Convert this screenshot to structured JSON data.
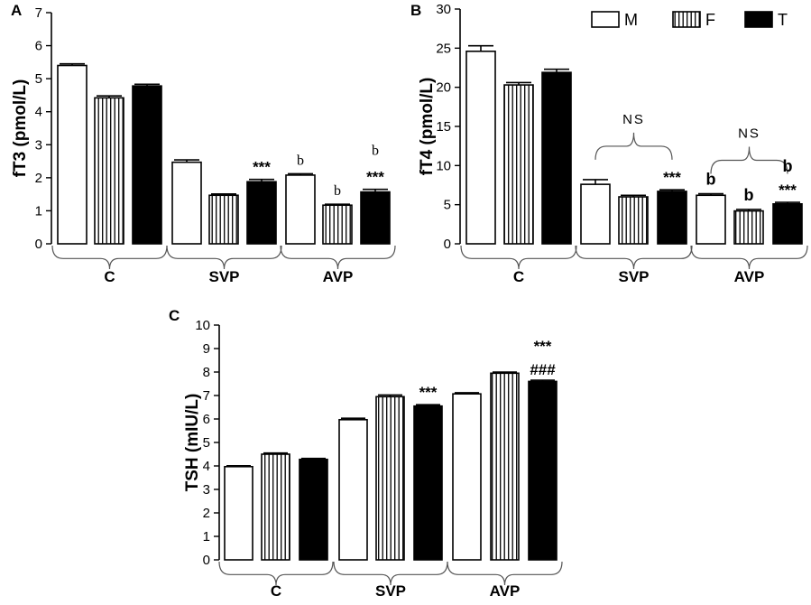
{
  "chart_data": [
    {
      "type": "bar",
      "panel": "A",
      "ylabel": "fT3 (pmol/L)",
      "ylim": [
        0,
        7
      ],
      "yticks": [
        0,
        1,
        2,
        3,
        4,
        5,
        6,
        7
      ],
      "categories": [
        "C",
        "SVP",
        "AVP"
      ],
      "series": [
        {
          "name": "M",
          "values": [
            5.4,
            2.47,
            2.08
          ],
          "errors": [
            0.05,
            0.07,
            0.04
          ]
        },
        {
          "name": "F",
          "values": [
            4.42,
            1.47,
            1.17
          ],
          "errors": [
            0.06,
            0.04,
            0.03
          ]
        },
        {
          "name": "T",
          "values": [
            4.78,
            1.88,
            1.57
          ],
          "errors": [
            0.05,
            0.07,
            0.08
          ]
        }
      ],
      "annotations": [
        {
          "text": "***",
          "category": 1,
          "series": 2,
          "style": "star"
        },
        {
          "text": "b",
          "category": 2,
          "series": 0,
          "style": "serif"
        },
        {
          "text": "b",
          "category": 2,
          "series": 1,
          "style": "serif"
        },
        {
          "text": "b",
          "category": 2,
          "series": 2,
          "style": "serif",
          "line": 2
        },
        {
          "text": "***",
          "category": 2,
          "series": 2,
          "style": "star"
        }
      ]
    },
    {
      "type": "bar",
      "panel": "B",
      "ylabel": "fT4 (pmol/L)",
      "ylim": [
        0,
        30
      ],
      "yticks": [
        0,
        5,
        10,
        15,
        20,
        25,
        30
      ],
      "categories": [
        "C",
        "SVP",
        "AVP"
      ],
      "series": [
        {
          "name": "M",
          "values": [
            24.6,
            7.6,
            6.2
          ],
          "errors": [
            0.7,
            0.6,
            0.2
          ]
        },
        {
          "name": "F",
          "values": [
            20.3,
            6.0,
            4.2
          ],
          "errors": [
            0.3,
            0.2,
            0.2
          ]
        },
        {
          "name": "T",
          "values": [
            21.9,
            6.7,
            5.1
          ],
          "errors": [
            0.4,
            0.2,
            0.2
          ]
        }
      ],
      "legend": {
        "position": "top-right",
        "entries": [
          "M",
          "F",
          "T"
        ]
      },
      "annotations": [
        {
          "text": "NS",
          "category": 1,
          "style": "ns"
        },
        {
          "text": "NS",
          "category": 2,
          "style": "ns"
        },
        {
          "text": "***",
          "category": 1,
          "series": 2,
          "style": "star"
        },
        {
          "text": "b",
          "category": 2,
          "series": 0,
          "style": "bold"
        },
        {
          "text": "b",
          "category": 2,
          "series": 1,
          "style": "bold"
        },
        {
          "text": "b",
          "category": 2,
          "series": 2,
          "style": "bold",
          "line": 2
        },
        {
          "text": "***",
          "category": 2,
          "series": 2,
          "style": "star"
        }
      ]
    },
    {
      "type": "bar",
      "panel": "C",
      "ylabel": "TSH (mIU/L)",
      "ylim": [
        0,
        10
      ],
      "yticks": [
        0,
        1,
        2,
        3,
        4,
        5,
        6,
        7,
        8,
        9,
        10
      ],
      "categories": [
        "C",
        "SVP",
        "AVP"
      ],
      "series": [
        {
          "name": "M",
          "values": [
            3.97,
            5.97,
            7.07
          ],
          "errors": [
            0.04,
            0.06,
            0.05
          ]
        },
        {
          "name": "F",
          "values": [
            4.5,
            6.95,
            7.95
          ],
          "errors": [
            0.05,
            0.07,
            0.05
          ]
        },
        {
          "name": "T",
          "values": [
            4.28,
            6.55,
            7.6
          ],
          "errors": [
            0.04,
            0.06,
            0.05
          ]
        }
      ],
      "annotations": [
        {
          "text": "***",
          "category": 1,
          "series": 2,
          "style": "star"
        },
        {
          "text": "###",
          "category": 2,
          "series": 2,
          "style": "hash"
        },
        {
          "text": "***",
          "category": 2,
          "series": 2,
          "style": "star",
          "line": 2
        }
      ]
    }
  ]
}
